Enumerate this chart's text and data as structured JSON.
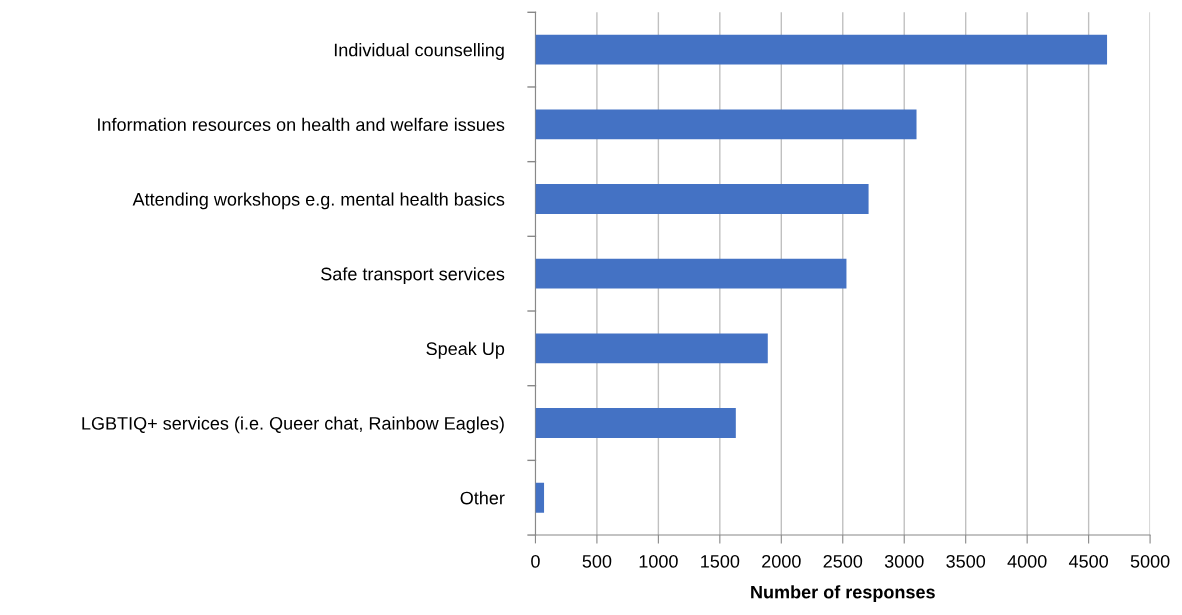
{
  "chart_data": {
    "type": "bar",
    "orientation": "horizontal",
    "xlabel": "Number of responses",
    "categories": [
      "Individual counselling",
      "Information resources on health and welfare issues",
      "Attending workshops e.g. mental health basics",
      "Safe transport services",
      "Speak Up",
      "LGBTIQ+ services (i.e. Queer chat, Rainbow Eagles)",
      "Other"
    ],
    "values": [
      4650,
      3100,
      2710,
      2530,
      1890,
      1630,
      70
    ],
    "color": "#4472c4",
    "xlim": [
      0,
      5000
    ],
    "xticks": [
      0,
      500,
      1000,
      1500,
      2000,
      2500,
      3000,
      3500,
      4000,
      4500,
      5000
    ],
    "grid": "x"
  }
}
